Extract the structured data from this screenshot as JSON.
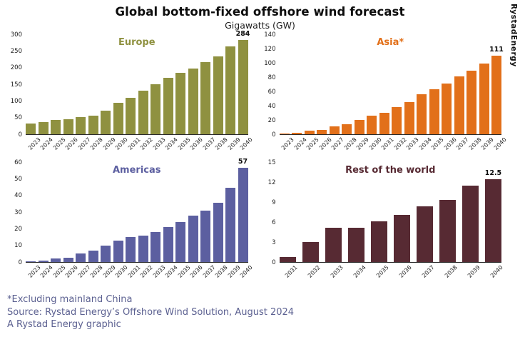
{
  "header": {
    "title": "Global bottom-fixed offshore wind forecast",
    "subtitle": "Gigawatts (GW)",
    "brand": "RystadEnergy"
  },
  "footer": {
    "note": "*Excluding mainland China",
    "source": "Source: Rystad Energy’s Offshore Wind Solution, August 2024",
    "credit": "A Rystad Energy graphic"
  },
  "chart_data": [
    {
      "type": "bar",
      "title": "Europe",
      "color": "#8f9140",
      "ymax": 300,
      "yticks": [
        0,
        50,
        100,
        150,
        200,
        250,
        300
      ],
      "categories": [
        "2023",
        "2024",
        "2025",
        "2026",
        "2027",
        "2028",
        "2029",
        "2030",
        "2031",
        "2032",
        "2033",
        "2034",
        "2035",
        "2036",
        "2037",
        "2038",
        "2039",
        "2040"
      ],
      "values": [
        33,
        36,
        44,
        46,
        52,
        56,
        72,
        94,
        110,
        131,
        152,
        170,
        186,
        198,
        217,
        235,
        266,
        284
      ],
      "end_label": "284",
      "grid": false,
      "legend": false
    },
    {
      "type": "bar",
      "title": "Asia*",
      "color": "#e2701a",
      "ymax": 140,
      "yticks": [
        0,
        20,
        40,
        60,
        80,
        100,
        120,
        140
      ],
      "categories": [
        "2023",
        "2024",
        "2025",
        "2026",
        "2027",
        "2028",
        "2029",
        "2030",
        "2031",
        "2032",
        "2033",
        "2034",
        "2035",
        "2036",
        "2037",
        "2038",
        "2039",
        "2040"
      ],
      "values": [
        1,
        2.5,
        5,
        6,
        11,
        14,
        20,
        26,
        30,
        38,
        45,
        56,
        63,
        72,
        82,
        90,
        100,
        111
      ],
      "end_label": "111",
      "grid": false,
      "legend": false
    },
    {
      "type": "bar",
      "title": "Americas",
      "color": "#5c5fa0",
      "ymax": 60,
      "yticks": [
        0,
        10,
        20,
        30,
        40,
        50,
        60
      ],
      "categories": [
        "2023",
        "2024",
        "2025",
        "2026",
        "2027",
        "2028",
        "2029",
        "2030",
        "2031",
        "2032",
        "2033",
        "2034",
        "2035",
        "2036",
        "2037",
        "2038",
        "2039",
        "2040"
      ],
      "values": [
        0.4,
        1,
        2,
        2.5,
        5,
        7,
        10,
        13,
        15,
        16,
        18,
        21,
        24,
        28,
        31,
        36,
        45,
        57
      ],
      "end_label": "57",
      "grid": false,
      "legend": false
    },
    {
      "type": "bar",
      "title": "Rest of the world",
      "color": "#572a33",
      "ymax": 15,
      "yticks": [
        0,
        3,
        6,
        9,
        12,
        15
      ],
      "categories": [
        "2031",
        "2032",
        "2033",
        "2034",
        "2035",
        "2036",
        "2037",
        "2038",
        "2039",
        "2040"
      ],
      "values": [
        0.8,
        3,
        5.2,
        5.2,
        6.2,
        7.1,
        8.4,
        9.4,
        11.5,
        12.5
      ],
      "end_label": "12.5",
      "grid": false,
      "legend": false
    }
  ]
}
